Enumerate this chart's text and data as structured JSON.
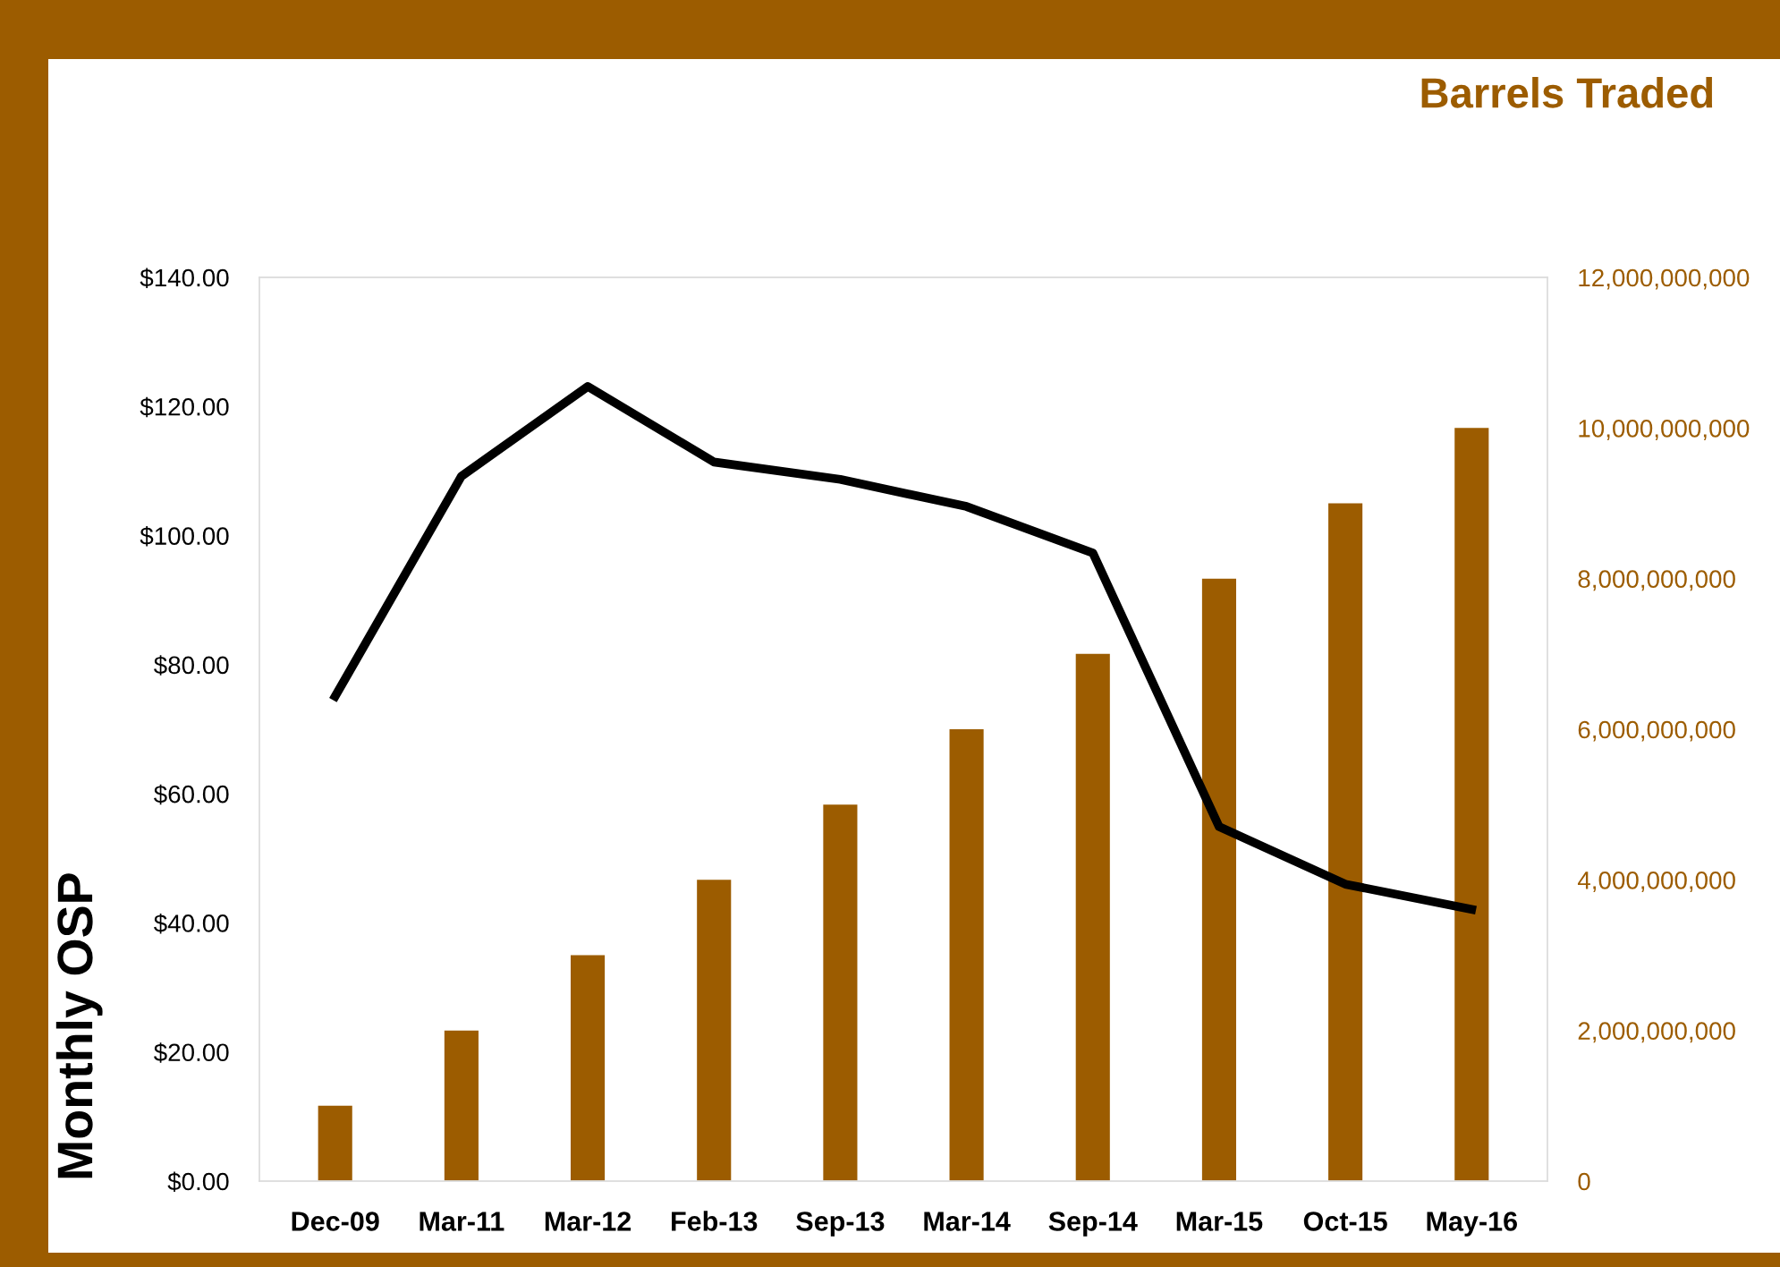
{
  "chart_data": {
    "type": "bar",
    "ylabel": "Monthly OSP",
    "y2label": "Barrels Traded",
    "categories": [
      "Dec-09",
      "Mar-11",
      "Mar-12",
      "Feb-13",
      "Sep-13",
      "Mar-14",
      "Sep-14",
      "Mar-15",
      "Oct-15",
      "May-16"
    ],
    "series": [
      {
        "axis": "y2",
        "color": "#9c5c00",
        "values": [
          1000000000,
          2000000000,
          3000000000,
          4000000000,
          5000000000,
          6000000000,
          7000000000,
          8000000000,
          9000000000,
          10000000000
        ]
      },
      {
        "type": "line",
        "color": "#000000",
        "values": [
          75.1,
          109.2,
          123.1,
          111.4,
          108.7,
          104.5,
          97.3,
          54.9,
          46.0,
          42.1
        ]
      }
    ],
    "ylim": [
      0,
      140
    ],
    "yticks": [
      {
        "value": 0,
        "label": "$0.00"
      },
      {
        "value": 20,
        "label": "$20.00"
      },
      {
        "value": 40,
        "label": "$40.00"
      },
      {
        "value": 60,
        "label": "$60.00"
      },
      {
        "value": 80,
        "label": "$80.00"
      },
      {
        "value": 100,
        "label": "$100.00"
      },
      {
        "value": 120,
        "label": "$120.00"
      },
      {
        "value": 140,
        "label": "$140.00"
      }
    ],
    "y2lim": [
      0,
      12000000000
    ],
    "y2ticks": [
      {
        "value": 0,
        "label": "0"
      },
      {
        "value": 2000000000,
        "label": "2,000,000,000"
      },
      {
        "value": 4000000000,
        "label": "4,000,000,000"
      },
      {
        "value": 6000000000,
        "label": "6,000,000,000"
      },
      {
        "value": 8000000000,
        "label": "8,000,000,000"
      },
      {
        "value": 10000000000,
        "label": "10,000,000,000"
      },
      {
        "value": 12000000000,
        "label": "12,000,000,000"
      }
    ],
    "grid": false,
    "legend": false,
    "marker": "none",
    "line_style": "solid"
  }
}
